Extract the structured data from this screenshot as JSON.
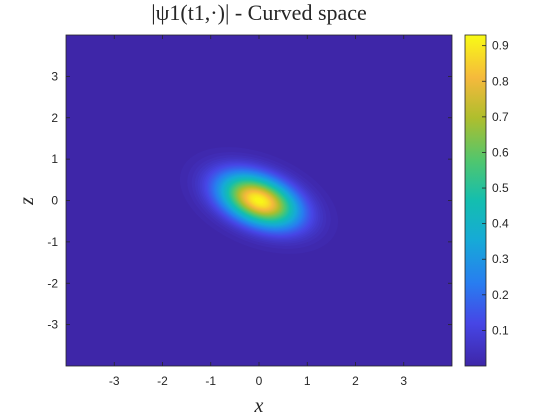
{
  "chart_data": {
    "type": "heatmap",
    "title": "|ψ1(t1,·)| - Curved space",
    "xlabel": "x",
    "ylabel": "z",
    "xlim": [
      -4,
      4
    ],
    "ylim": [
      -4,
      4
    ],
    "x_ticks": [
      -3,
      -2,
      -1,
      0,
      1,
      2,
      3
    ],
    "y_ticks": [
      -3,
      -2,
      -1,
      0,
      1,
      2,
      3
    ],
    "x_tick_labels": [
      "-3",
      "-2",
      "-1",
      "0",
      "1",
      "2",
      "3"
    ],
    "y_tick_labels": [
      "-3",
      "-2",
      "-1",
      "0",
      "1",
      "2",
      "3"
    ],
    "colormap": "parula",
    "color_range": [
      0,
      0.93
    ],
    "colorbar_ticks": [
      0.1,
      0.2,
      0.3,
      0.4,
      0.5,
      0.6,
      0.7,
      0.8,
      0.9
    ],
    "colorbar_tick_labels": [
      "0.1",
      "0.2",
      "0.3",
      "0.4",
      "0.5",
      "0.6",
      "0.7",
      "0.8",
      "0.9"
    ],
    "colorbar_position": "right",
    "grid": false,
    "field": {
      "shape": "rotated-gaussian",
      "peak_value": 0.93,
      "center": [
        0.0,
        0.0
      ],
      "sigma_major": 0.58,
      "sigma_minor": 0.38,
      "major_axis_angle_deg": -22
    }
  }
}
